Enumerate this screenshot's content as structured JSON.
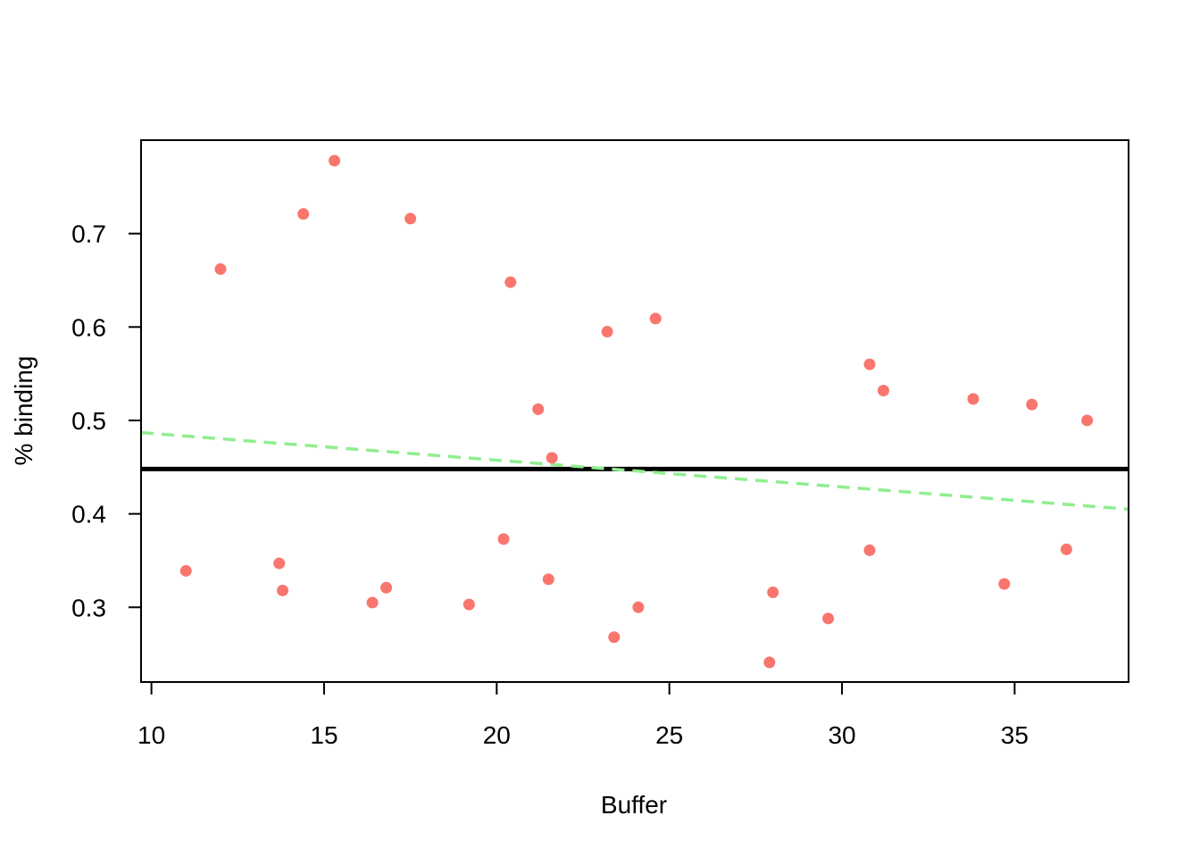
{
  "chart_data": {
    "type": "scatter",
    "title": "",
    "xlabel": "Buffer",
    "ylabel": "% binding",
    "xlim": [
      9.7,
      38.3
    ],
    "ylim": [
      0.22,
      0.8
    ],
    "x_ticks": [
      "10",
      "15",
      "20",
      "25",
      "30",
      "35"
    ],
    "y_ticks": [
      "0.3",
      "0.4",
      "0.5",
      "0.6",
      "0.7"
    ],
    "grid": false,
    "legend": "none",
    "point_color": "#F8766D",
    "points": [
      {
        "x": 11.0,
        "y": 0.339
      },
      {
        "x": 12.0,
        "y": 0.662
      },
      {
        "x": 13.7,
        "y": 0.347
      },
      {
        "x": 13.8,
        "y": 0.318
      },
      {
        "x": 14.4,
        "y": 0.721
      },
      {
        "x": 15.3,
        "y": 0.778
      },
      {
        "x": 16.4,
        "y": 0.305
      },
      {
        "x": 16.8,
        "y": 0.321
      },
      {
        "x": 17.5,
        "y": 0.716
      },
      {
        "x": 19.2,
        "y": 0.303
      },
      {
        "x": 20.2,
        "y": 0.373
      },
      {
        "x": 20.4,
        "y": 0.648
      },
      {
        "x": 21.2,
        "y": 0.512
      },
      {
        "x": 21.5,
        "y": 0.33
      },
      {
        "x": 21.6,
        "y": 0.46
      },
      {
        "x": 23.2,
        "y": 0.595
      },
      {
        "x": 23.4,
        "y": 0.268
      },
      {
        "x": 24.1,
        "y": 0.3
      },
      {
        "x": 24.6,
        "y": 0.609
      },
      {
        "x": 27.9,
        "y": 0.241
      },
      {
        "x": 28.0,
        "y": 0.316
      },
      {
        "x": 29.6,
        "y": 0.288
      },
      {
        "x": 30.8,
        "y": 0.56
      },
      {
        "x": 30.8,
        "y": 0.361
      },
      {
        "x": 31.2,
        "y": 0.532
      },
      {
        "x": 33.8,
        "y": 0.523
      },
      {
        "x": 34.7,
        "y": 0.325
      },
      {
        "x": 35.5,
        "y": 0.517
      },
      {
        "x": 36.5,
        "y": 0.362
      },
      {
        "x": 37.1,
        "y": 0.5
      }
    ],
    "lines": [
      {
        "style": "solid",
        "color": "#000000",
        "x": [
          9.7,
          38.3
        ],
        "y": [
          0.448,
          0.448
        ]
      },
      {
        "style": "dashed",
        "color": "#90EE90",
        "x": [
          9.7,
          38.3
        ],
        "y": [
          0.487,
          0.405
        ]
      }
    ]
  }
}
